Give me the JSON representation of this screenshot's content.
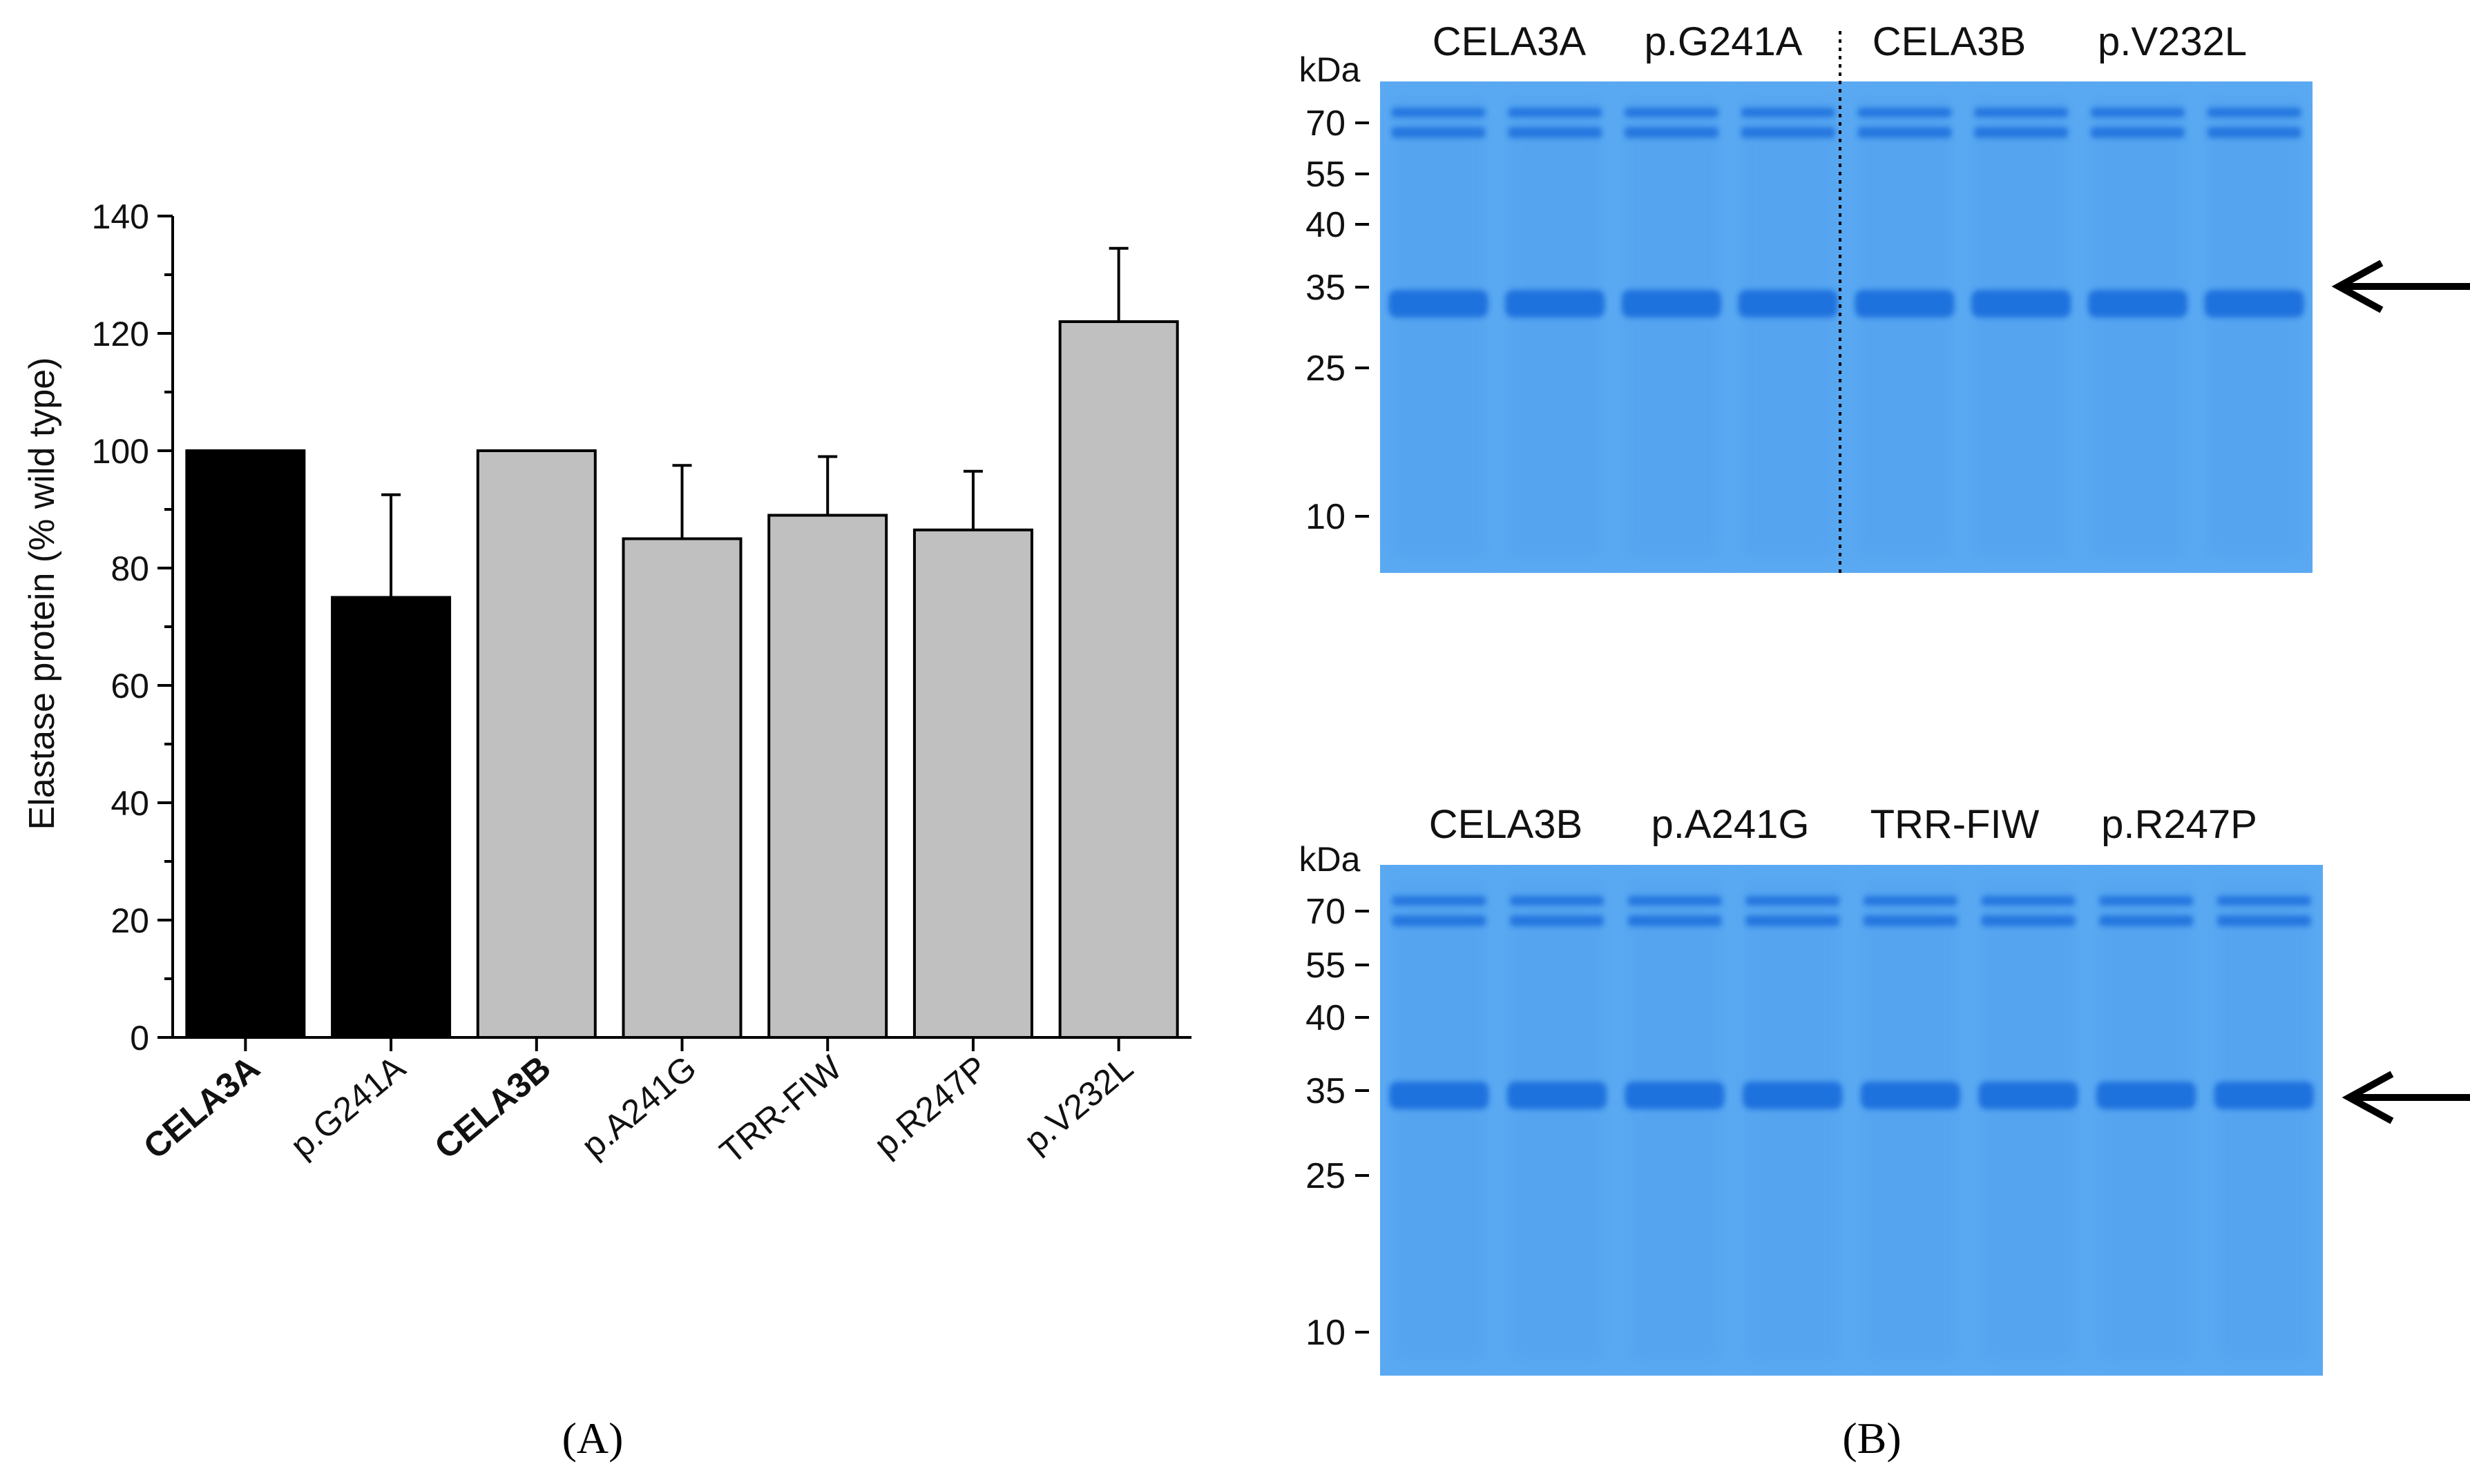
{
  "chart_data": [
    {
      "type": "bar",
      "panel": "A",
      "title": "",
      "xlabel": "",
      "ylabel": "Elastase protein (% wild type)",
      "ylim": [
        0,
        140
      ],
      "yticks": [
        0,
        20,
        40,
        60,
        80,
        100,
        120,
        140
      ],
      "categories": [
        "CELA3A",
        "p.G241A",
        "CELA3B",
        "p.A241G",
        "TRR-FIW",
        "p.R247P",
        "p.V232L"
      ],
      "bold_categories": [
        "CELA3A",
        "CELA3B"
      ],
      "values": [
        100,
        75,
        100,
        85,
        89,
        86.5,
        122
      ],
      "errors": [
        0,
        17.5,
        0,
        12.5,
        10,
        10,
        12.5
      ],
      "bar_colors": [
        "#000000",
        "#000000",
        "#c0c0c0",
        "#c0c0c0",
        "#c0c0c0",
        "#c0c0c0",
        "#c0c0c0"
      ],
      "panel_label": "(A)"
    }
  ],
  "gels": [
    {
      "name": "gel-top",
      "lane_groups": [
        "CELA3A",
        "p.G241A",
        "CELA3B",
        "p.V232L"
      ],
      "unit_label": "kDa",
      "markers": [
        "70",
        "55",
        "40",
        "35",
        "25",
        "10"
      ],
      "divider_after_group": 2,
      "band_of_interest_kda": "35"
    },
    {
      "name": "gel-bottom",
      "lane_groups": [
        "CELA3B",
        "p.A241G",
        "TRR-FIW",
        "p.R247P"
      ],
      "unit_label": "kDa",
      "markers": [
        "70",
        "55",
        "40",
        "35",
        "25",
        "10"
      ],
      "divider_after_group": null,
      "band_of_interest_kda": "35"
    }
  ],
  "panel_label_b": "(B)",
  "colors": {
    "gel_background": "#5aa9f2",
    "gel_band": "#1b6fdd",
    "bar_dark": "#000000",
    "bar_light": "#c0c0c0"
  }
}
